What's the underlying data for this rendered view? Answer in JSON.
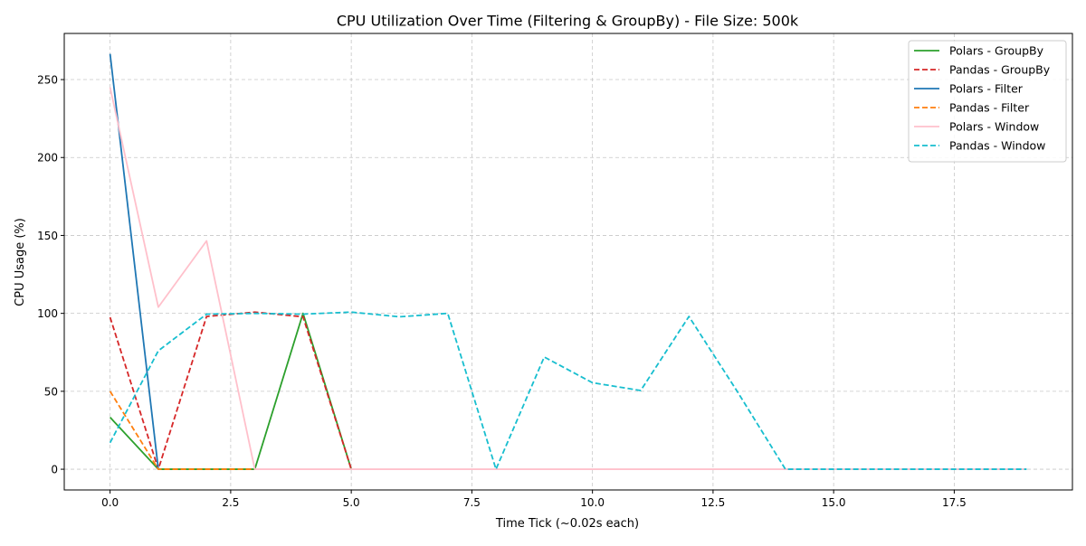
{
  "chart_data": {
    "type": "line",
    "title": "CPU Utilization Over Time (Filtering & GroupBy) - File Size: 500k",
    "xlabel": "Time Tick (~0.02s each)",
    "ylabel": "CPU Usage (%)",
    "xlim": [
      -0.95,
      19.95
    ],
    "ylim": [
      -13.3,
      279.6
    ],
    "xticks": [
      0.0,
      2.5,
      5.0,
      7.5,
      10.0,
      12.5,
      15.0,
      17.5
    ],
    "xtick_labels": [
      "0.0",
      "2.5",
      "5.0",
      "7.5",
      "10.0",
      "12.5",
      "15.0",
      "17.5"
    ],
    "yticks": [
      0,
      50,
      100,
      150,
      200,
      250
    ],
    "ytick_labels": [
      "0",
      "50",
      "100",
      "150",
      "200",
      "250"
    ],
    "grid": true,
    "legend_position": "top-right",
    "series": [
      {
        "name": "Polars - GroupBy",
        "color": "#2ca02c",
        "dash": "solid",
        "x": [
          0,
          1,
          2,
          3,
          4,
          5
        ],
        "y": [
          33.3,
          0,
          0,
          0,
          100.0,
          0
        ]
      },
      {
        "name": "Pandas - GroupBy",
        "color": "#d62728",
        "dash": "dashed",
        "x": [
          0,
          1,
          2,
          3,
          4,
          5
        ],
        "y": [
          97.5,
          0,
          98.0,
          100.8,
          97.8,
          0
        ]
      },
      {
        "name": "Polars - Filter",
        "color": "#1f77b4",
        "dash": "solid",
        "x": [
          0,
          1
        ],
        "y": [
          266.5,
          0
        ]
      },
      {
        "name": "Pandas - Filter",
        "color": "#ff7f0e",
        "dash": "dashed",
        "x": [
          0,
          1,
          2,
          3
        ],
        "y": [
          50.0,
          0,
          0,
          0
        ]
      },
      {
        "name": "Polars - Window",
        "color": "#ffc0cb",
        "dash": "solid",
        "x": [
          0,
          1,
          2,
          3,
          4,
          5,
          6,
          7,
          8,
          9,
          10,
          11,
          12,
          13,
          14,
          15,
          16,
          17,
          18,
          19
        ],
        "y": [
          245.0,
          104.0,
          146.5,
          0,
          0,
          0,
          0,
          0,
          0,
          0,
          0,
          0,
          0,
          0,
          0,
          0,
          0,
          0,
          0,
          0
        ]
      },
      {
        "name": "Pandas - Window",
        "color": "#17becf",
        "dash": "dashed",
        "x": [
          0,
          1,
          2,
          3,
          4,
          5,
          6,
          7,
          8,
          9,
          10,
          11,
          12,
          13,
          14,
          15,
          16,
          17,
          18,
          19
        ],
        "y": [
          17.0,
          76.0,
          99.5,
          100.0,
          99.5,
          100.8,
          97.8,
          100.0,
          0,
          72.0,
          55.5,
          50.5,
          98.0,
          50.0,
          0,
          0,
          0,
          0,
          0,
          0
        ]
      }
    ]
  }
}
